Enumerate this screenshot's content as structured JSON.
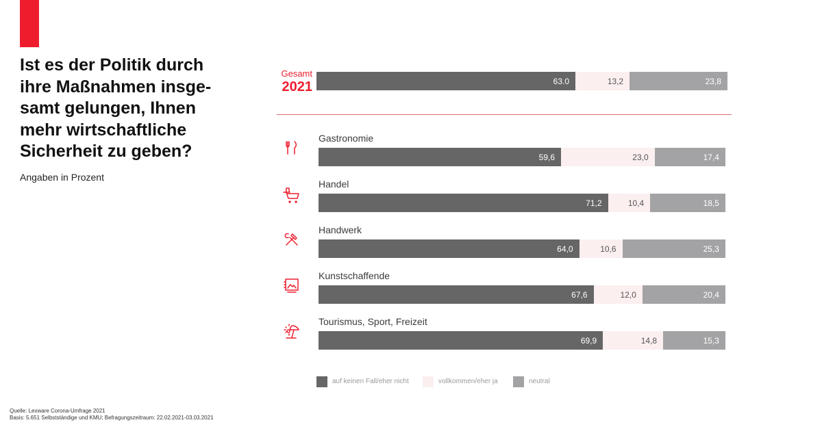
{
  "title_lines": [
    "Ist es der Politik durch",
    "ihre Maßnahmen insge-",
    "samt gelungen, Ihnen",
    "mehr wirtschaftliche",
    "Sicherheit zu geben?"
  ],
  "subtitle": "Angaben in Prozent",
  "source_lines": [
    "Quelle: Lexware Corona-Umfrage 2021",
    "Basis: 5.651 Selbstständige und KMU; Befragungszeitraum: 22.02.2021-03.03.2021"
  ],
  "colors": {
    "accent": "#ee1d2e",
    "neg": "#666666",
    "pos": "#fbeff0",
    "neu": "#a3a3a5"
  },
  "chart_data": {
    "type": "bar",
    "orientation": "horizontal",
    "stacked": true,
    "xlim": [
      0,
      100
    ],
    "total_label": {
      "line1": "Gesamt",
      "line2": "2021"
    },
    "series": [
      {
        "name": "auf keinen Fall/eher nicht",
        "color": "#666666"
      },
      {
        "name": "vollkommen/eher ja",
        "color": "#fbeff0"
      },
      {
        "name": "neutral",
        "color": "#a3a3a5"
      }
    ],
    "total": {
      "values": [
        63.0,
        13.2,
        23.8
      ],
      "labels": [
        "63.0",
        "13,2",
        "23,8"
      ]
    },
    "categories": [
      {
        "name": "Gastronomie",
        "icon": "fork-knife-icon",
        "values": [
          59.6,
          23.0,
          17.4
        ],
        "labels": [
          "59,6",
          "23,0",
          "17,4"
        ]
      },
      {
        "name": "Handel",
        "icon": "shopping-cart-icon",
        "values": [
          71.2,
          10.4,
          18.5
        ],
        "labels": [
          "71,2",
          "10,4",
          "18,5"
        ]
      },
      {
        "name": "Handwerk",
        "icon": "hammer-wrench-icon",
        "values": [
          64.0,
          10.6,
          25.3
        ],
        "labels": [
          "64,0",
          "10,6",
          "25,3"
        ]
      },
      {
        "name": "Kunstschaffende",
        "icon": "picture-frame-icon",
        "values": [
          67.6,
          12.0,
          20.4
        ],
        "labels": [
          "67,6",
          "12,0",
          "20,4"
        ]
      },
      {
        "name": "Tourismus, Sport, Freizeit",
        "icon": "beach-icon",
        "values": [
          69.9,
          14.8,
          15.3
        ],
        "labels": [
          "69,9",
          "14,8",
          "15,3"
        ]
      }
    ]
  }
}
